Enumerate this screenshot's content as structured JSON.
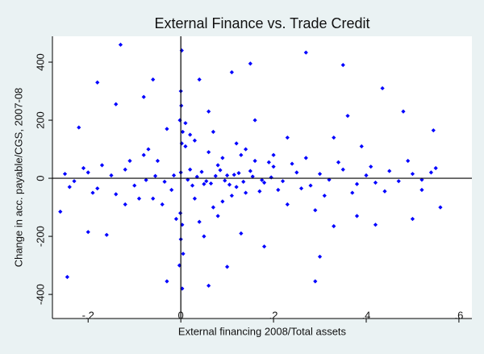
{
  "chart_data": {
    "type": "scatter",
    "title": "External Finance vs. Trade Credit",
    "xlabel": "External financing 2008/Total assets",
    "ylabel": "Change in acc. payable/CGS, 2007-08",
    "color": "#0000ff",
    "xlim": [
      -0.277,
      0.628
    ],
    "ylim": [
      -483,
      489
    ],
    "xticks": [
      {
        "value": -0.2,
        "label": "-.2"
      },
      0,
      {
        "value": 0.2,
        "label": ".2"
      },
      {
        "value": 0.4,
        "label": ".4"
      },
      {
        "value": 0.6,
        "label": ".6"
      }
    ],
    "yticks": [
      -400,
      -200,
      0,
      200,
      400
    ],
    "xline": 0,
    "yline": 0,
    "x": [
      -0.13,
      0.27,
      -0.18,
      0.435,
      0.35,
      0.15,
      0.11,
      -0.14,
      -0.22,
      0.48,
      0.545,
      -0.245,
      0.29,
      -0.03,
      0.06,
      0.1,
      0.18,
      -0.16,
      -0.2,
      0.56,
      -0.26,
      0.5,
      0.38,
      0.33,
      0.002,
      0.003,
      -0.06,
      0.04,
      -0.08,
      0.36,
      0,
      0.001,
      -0.002,
      0.004,
      0.002,
      -0.001,
      0.003,
      0,
      0.005,
      -0.003,
      0.02,
      0.05,
      0.08,
      -0.02,
      -0.05,
      0.1,
      0.12,
      0.15,
      0.18,
      0.2,
      0.22,
      0.25,
      0.28,
      0.3,
      0.32,
      0.35,
      0.38,
      0.4,
      0.42,
      0.45,
      0.47,
      0.5,
      0.52,
      0.54,
      -0.1,
      -0.12,
      -0.15,
      -0.18,
      -0.2,
      -0.23,
      -0.25,
      -0.08,
      -0.04,
      0.01,
      0.03,
      0.06,
      0.07,
      0.09,
      0.11,
      0.13,
      0.14,
      0.16,
      0.17,
      0.19,
      0.21,
      0.24,
      0.26,
      0.02,
      -0.03,
      0.04,
      -0.01,
      0.01,
      0.03,
      -0.06,
      0.08,
      0.12,
      0.05,
      0.07,
      -0.07,
      0.09,
      0.14,
      0.2,
      0.23,
      0.27,
      0.31,
      0.34,
      0.37,
      0.41,
      0.44,
      0.49,
      0.52,
      0.55,
      -0.11,
      -0.14,
      -0.17,
      -0.19,
      -0.21,
      -0.24,
      -0.09,
      0.0,
      0.015,
      0.035,
      0.055,
      0.075,
      0.095,
      0.115,
      0.135,
      0.155,
      0.175,
      0.195,
      -0.015,
      -0.035,
      -0.055,
      -0.075,
      0.025,
      0.045,
      0.065,
      0.085,
      0.105,
      0.125,
      0.16,
      0.33,
      0.29,
      0.06,
      -0.12,
      0.42,
      0.39,
      0.23,
      0.13,
      0.3
    ],
    "values": [
      460,
      433,
      330,
      310,
      390,
      395,
      365,
      255,
      175,
      230,
      165,
      -340,
      -355,
      -355,
      -370,
      -305,
      -235,
      -195,
      -185,
      -100,
      -115,
      -140,
      -130,
      -165,
      440,
      -380,
      340,
      340,
      280,
      215,
      300,
      250,
      200,
      160,
      120,
      -120,
      -160,
      -210,
      -260,
      -300,
      30,
      -20,
      45,
      -40,
      60,
      10,
      -30,
      25,
      -15,
      40,
      -10,
      20,
      -25,
      15,
      -5,
      30,
      -20,
      10,
      -15,
      25,
      -10,
      15,
      -5,
      20,
      -25,
      30,
      10,
      -35,
      20,
      -10,
      15,
      80,
      -90,
      110,
      -70,
      90,
      -100,
      70,
      -60,
      80,
      -50,
      60,
      -45,
      55,
      -40,
      50,
      -35,
      150,
      170,
      -150,
      -140,
      190,
      130,
      -70,
      -130,
      120,
      -200,
      160,
      100,
      -80,
      100,
      80,
      -90,
      70,
      -60,
      55,
      -50,
      40,
      -45,
      60,
      -40,
      35,
      60,
      -55,
      45,
      -50,
      35,
      -30,
      -70,
      20,
      -5,
      5,
      -10,
      8,
      -8,
      12,
      -12,
      6,
      -6,
      3,
      10,
      -12,
      8,
      -6,
      -25,
      22,
      -18,
      28,
      -22,
      18,
      200,
      140,
      -110,
      230,
      -90,
      -160,
      110,
      140,
      -190,
      -270
    ]
  }
}
